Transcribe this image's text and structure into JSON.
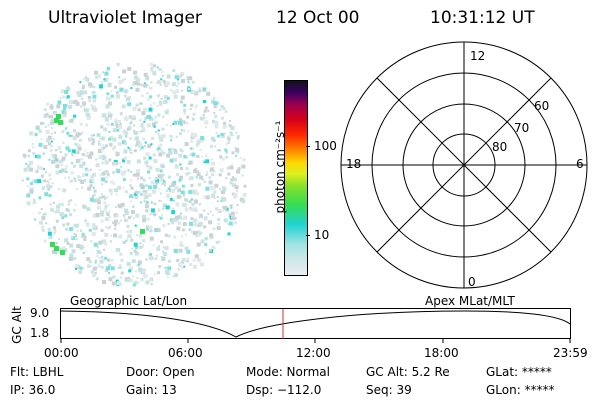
{
  "header": {
    "instrument": "Ultraviolet Imager",
    "date": "12 Oct 00",
    "time": "10:31:12 UT"
  },
  "colorbar": {
    "label": "photon cm⁻²s⁻¹",
    "ticks": [
      "100",
      "10"
    ]
  },
  "polar_plot": {
    "mlt_labels": {
      "top": "12",
      "left": "18",
      "right": "6",
      "bottom": "0"
    },
    "lat_labels": [
      "60",
      "70",
      "80"
    ]
  },
  "panels": {
    "left_caption": "Geographic Lat/Lon",
    "right_caption": "Apex MLat/MLT"
  },
  "altitude_plot": {
    "axis_label": "GC Alt",
    "y_ticks": [
      "9.0",
      "1.8"
    ],
    "x_ticks": [
      "00:00",
      "06:00",
      "12:00",
      "18:00",
      "23:59"
    ]
  },
  "status": {
    "flt": "Flt: LBHL",
    "ip": "IP: 36.0",
    "door": "Door: Open",
    "gain": "Gain: 13",
    "mode": "Mode: Normal",
    "dsp": "Dsp: −112.0",
    "gc_alt": "GC Alt: 5.2 Re",
    "seq": "Seq: 39",
    "glat": "GLat: *****",
    "glon": "GLon: *****"
  },
  "colors": {
    "current_time_marker": "#d03030",
    "colorbar_stops": [
      "#e6eef0",
      "#9fe3e3",
      "#22d3d3",
      "#33dd55",
      "#88e02a",
      "#ddef20",
      "#ffd700",
      "#ff8a00",
      "#ff2a00",
      "#d8001a",
      "#9a0050",
      "#3a0060",
      "#101020"
    ]
  }
}
